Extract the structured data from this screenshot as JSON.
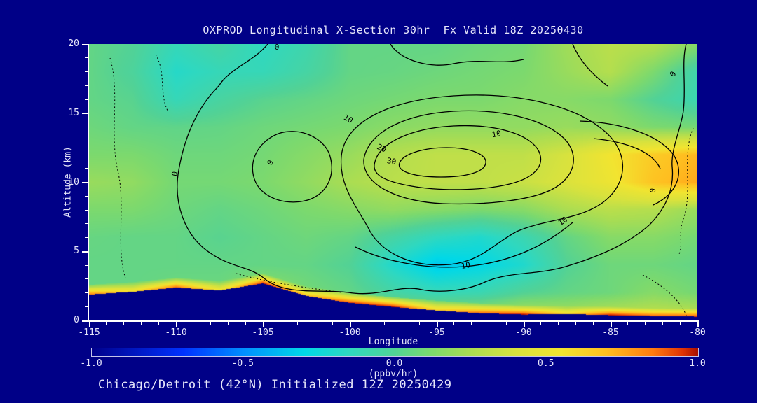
{
  "caption": "Chicago/Detroit (42°N) Initialized 12Z 20250429",
  "colors": {
    "background": "#000087",
    "text": "#e6e6fa",
    "axis": "#ffffff",
    "contour": "#000000"
  },
  "chart_data": {
    "type": "heatmap",
    "title": "OXPROD Longitudinal X-Section 30hr  Fx Valid 18Z 20250430",
    "xlabel": "Longitude",
    "ylabel": "Altitude (km)",
    "xlim": [
      -115,
      -80
    ],
    "ylim": [
      0,
      20
    ],
    "x_ticks": [
      "-115",
      "-110",
      "-105",
      "-100",
      "-95",
      "-90",
      "-85",
      "-80"
    ],
    "y_ticks": [
      "0",
      "5",
      "10",
      "15",
      "20"
    ],
    "colorbar": {
      "min": -1.0,
      "max": 1.0,
      "ticks": [
        "-1.0",
        "-0.5",
        "0.0",
        "0.5",
        "1.0"
      ],
      "label": "(ppbv/hr)"
    },
    "colormap": [
      [
        -1.0,
        "#00008b"
      ],
      [
        -0.7,
        "#0032ff"
      ],
      [
        -0.5,
        "#0090ff"
      ],
      [
        -0.3,
        "#00d8e8"
      ],
      [
        -0.15,
        "#2fd8c0"
      ],
      [
        0.0,
        "#52d296"
      ],
      [
        0.12,
        "#7cd96e"
      ],
      [
        0.25,
        "#abdd52"
      ],
      [
        0.4,
        "#d8e23e"
      ],
      [
        0.55,
        "#f2e430"
      ],
      [
        0.7,
        "#ffbe20"
      ],
      [
        0.85,
        "#ff7d10"
      ],
      [
        0.95,
        "#e03406"
      ],
      [
        1.0,
        "#a80f00"
      ]
    ],
    "grid": {
      "lons": [
        -115,
        -112.5,
        -110,
        -107.5,
        -105,
        -102.5,
        -100,
        -97.5,
        -95,
        -92.5,
        -90,
        -87.5,
        -85,
        -82.5,
        -80
      ],
      "alts": [
        20,
        18,
        16,
        14,
        12,
        10,
        8,
        6,
        4,
        2,
        0
      ],
      "values": [
        [
          0.05,
          0.0,
          -0.12,
          -0.05,
          -0.15,
          -0.08,
          0.05,
          0.05,
          0.05,
          0.08,
          0.1,
          0.22,
          0.3,
          0.28,
          0.15
        ],
        [
          0.05,
          -0.02,
          -0.18,
          -0.12,
          -0.12,
          -0.05,
          0.05,
          0.06,
          0.08,
          0.1,
          0.12,
          0.2,
          0.28,
          0.12,
          -0.08
        ],
        [
          0.05,
          0.02,
          -0.12,
          -0.04,
          0.02,
          0.05,
          0.08,
          0.1,
          0.12,
          0.12,
          0.15,
          0.15,
          0.12,
          0.0,
          -0.1
        ],
        [
          0.08,
          0.05,
          0.04,
          0.05,
          0.08,
          0.1,
          0.12,
          0.16,
          0.18,
          0.18,
          0.18,
          0.2,
          0.18,
          0.12,
          0.1
        ],
        [
          0.12,
          0.12,
          0.08,
          0.08,
          0.1,
          0.15,
          0.2,
          0.28,
          0.32,
          0.32,
          0.32,
          0.4,
          0.55,
          0.65,
          0.72
        ],
        [
          0.2,
          0.18,
          0.1,
          0.1,
          0.12,
          0.18,
          0.25,
          0.3,
          0.32,
          0.32,
          0.35,
          0.42,
          0.52,
          0.68,
          0.75
        ],
        [
          0.12,
          0.12,
          0.08,
          0.05,
          0.08,
          0.12,
          0.15,
          0.18,
          0.15,
          0.12,
          0.15,
          0.25,
          0.3,
          0.28,
          0.2
        ],
        [
          0.06,
          0.05,
          0.05,
          0.02,
          0.05,
          0.08,
          0.05,
          -0.05,
          -0.15,
          -0.2,
          -0.1,
          0.05,
          0.15,
          0.15,
          0.1
        ],
        [
          0.05,
          0.05,
          0.05,
          0.05,
          0.05,
          0.05,
          0.0,
          -0.2,
          -0.35,
          -0.3,
          -0.2,
          0.0,
          0.08,
          0.08,
          0.05
        ],
        [
          0.05,
          0.05,
          0.08,
          0.08,
          0.2,
          0.1,
          0.05,
          -0.05,
          -0.12,
          -0.1,
          0.0,
          0.05,
          0.08,
          0.15,
          0.1
        ],
        [
          0.3,
          0.3,
          0.3,
          0.3,
          0.4,
          0.3,
          0.3,
          0.3,
          0.3,
          0.3,
          0.35,
          0.3,
          0.35,
          0.35,
          0.35
        ]
      ]
    },
    "terrain": {
      "lons": [
        -115,
        -112.5,
        -110,
        -107.5,
        -105,
        -102.5,
        -100,
        -97.5,
        -95,
        -92.5,
        -90,
        -87.5,
        -85,
        -82.5,
        -80
      ],
      "elevation_km": [
        1.9,
        2.1,
        2.4,
        2.2,
        2.7,
        1.8,
        1.3,
        1.0,
        0.75,
        0.55,
        0.45,
        0.5,
        0.4,
        0.35,
        0.3
      ],
      "color": "#000087"
    },
    "surface_production": [
      0.85,
      0.6,
      0.9,
      0.55,
      1.0,
      0.7,
      0.95,
      1.0,
      0.65,
      0.9,
      1.0,
      0.6,
      1.0,
      0.9,
      0.95
    ],
    "contour_levels": [
      0,
      10,
      20,
      30
    ],
    "contour_labels": [
      {
        "text": "0",
        "x": 268,
        "y": 8,
        "rot": 0
      },
      {
        "text": "0",
        "x": 126,
        "y": 186,
        "rot": -80
      },
      {
        "text": "0",
        "x": 262,
        "y": 171,
        "rot": -65
      },
      {
        "text": "10",
        "x": 368,
        "y": 110,
        "rot": 30
      },
      {
        "text": "20",
        "x": 416,
        "y": 152,
        "rot": 25
      },
      {
        "text": "30",
        "x": 431,
        "y": 171,
        "rot": 10
      },
      {
        "text": "10",
        "x": 582,
        "y": 132,
        "rot": -12
      },
      {
        "text": "0",
        "x": 836,
        "y": 45,
        "rot": -55
      },
      {
        "text": "0",
        "x": 808,
        "y": 210,
        "rot": -80
      },
      {
        "text": "10",
        "x": 678,
        "y": 256,
        "rot": -35
      },
      {
        "text": "10",
        "x": 538,
        "y": 320,
        "rot": -10
      }
    ]
  }
}
